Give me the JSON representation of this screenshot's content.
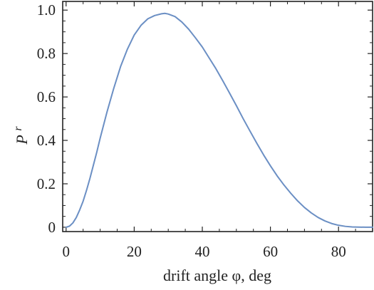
{
  "chart_data": {
    "type": "line",
    "title": "",
    "xlabel": "drift angle φ, deg",
    "ylabel": {
      "base": "P",
      "superscript": "r"
    },
    "xlim": [
      -1,
      90
    ],
    "ylim": [
      -0.02,
      1.04
    ],
    "x_ticks": [
      0,
      20,
      40,
      60,
      80
    ],
    "y_ticks": [
      0,
      0.2,
      0.4,
      0.6,
      0.8,
      1.0
    ],
    "x_tick_labels": [
      "0",
      "20",
      "40",
      "60",
      "80"
    ],
    "y_tick_labels": [
      "0",
      "0.2",
      "0.4",
      "0.6",
      "0.8",
      "1.0"
    ],
    "grid": false,
    "legend": "none",
    "line_color": "#6b8fc4",
    "series": [
      {
        "x": [
          0,
          1,
          2,
          3,
          4,
          5,
          6,
          7,
          8,
          9,
          10,
          12,
          14,
          16,
          18,
          20,
          22,
          24,
          26,
          28,
          29,
          30,
          32,
          34,
          36,
          38,
          40,
          42,
          44,
          46,
          48,
          50,
          52,
          54,
          56,
          58,
          60,
          62,
          64,
          66,
          68,
          70,
          72,
          74,
          76,
          78,
          80,
          82,
          84,
          86,
          88,
          90
        ],
        "y": [
          0.0,
          0.005,
          0.02,
          0.045,
          0.08,
          0.12,
          0.17,
          0.225,
          0.285,
          0.345,
          0.41,
          0.53,
          0.64,
          0.74,
          0.82,
          0.885,
          0.93,
          0.96,
          0.975,
          0.983,
          0.985,
          0.982,
          0.97,
          0.945,
          0.912,
          0.872,
          0.83,
          0.78,
          0.73,
          0.675,
          0.618,
          0.56,
          0.5,
          0.443,
          0.387,
          0.333,
          0.283,
          0.236,
          0.194,
          0.156,
          0.121,
          0.091,
          0.066,
          0.045,
          0.029,
          0.017,
          0.009,
          0.004,
          0.0015,
          0.0005,
          0.0001,
          0.0
        ]
      }
    ]
  }
}
